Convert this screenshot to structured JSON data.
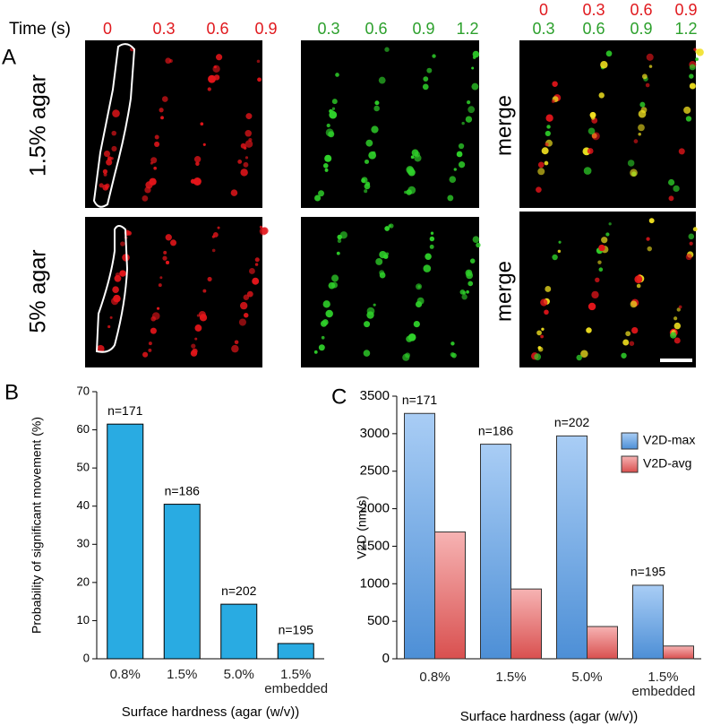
{
  "panel_a": {
    "label": "A",
    "time_label": "Time (s)",
    "red_times": [
      "0",
      "0.3",
      "0.6",
      "0.9"
    ],
    "green_times": [
      "0.3",
      "0.6",
      "0.9",
      "1.2"
    ],
    "merge_red_times": [
      "0",
      "0.3",
      "0.6",
      "0.9"
    ],
    "merge_green_times": [
      "0.3",
      "0.6",
      "0.9",
      "1.2"
    ],
    "rows": [
      "1.5% agar",
      "5% agar"
    ],
    "merge_label": "merge"
  },
  "chart_data": [
    {
      "type": "bar",
      "panel": "B",
      "y_label": "Probability of significant movement (%)",
      "x_label": "Surface hardness (agar (w/v))",
      "categories": [
        "0.8%",
        "1.5%",
        "5.0%",
        "1.5% embedded"
      ],
      "values": [
        61.5,
        40.5,
        14.3,
        4
      ],
      "annotations": [
        "n=171",
        "n=186",
        "n=202",
        "n=195"
      ],
      "color": "#29abe2",
      "ylim": [
        0,
        70
      ],
      "yticks": [
        0,
        10,
        20,
        30,
        40,
        50,
        60,
        70
      ]
    },
    {
      "type": "grouped-bar",
      "panel": "C",
      "y_label": "V2D (nm/s)",
      "x_label": "Surface hardness (agar (w/v))",
      "categories": [
        "0.8%",
        "1.5%",
        "5.0%",
        "1.5% embedded"
      ],
      "series": [
        {
          "name": "V2D-max",
          "color": "#8ab6ea",
          "values": [
            3270,
            2860,
            2970,
            980
          ]
        },
        {
          "name": "V2D-avg",
          "color": "#ec8a8a",
          "values": [
            1690,
            930,
            430,
            170
          ]
        }
      ],
      "annotations": [
        "n=171",
        "n=186",
        "n=202",
        "n=195"
      ],
      "ylim": [
        0,
        3500
      ],
      "yticks": [
        0,
        500,
        1000,
        1500,
        2000,
        2500,
        3000,
        3500
      ]
    }
  ]
}
